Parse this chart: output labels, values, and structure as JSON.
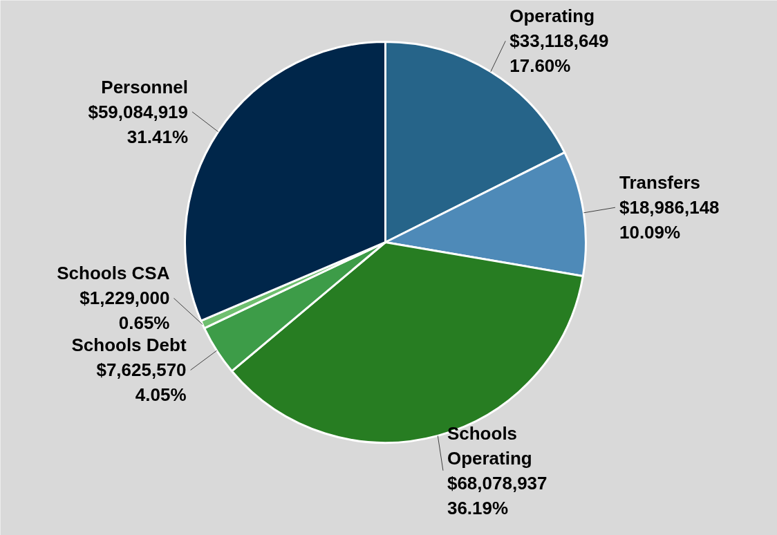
{
  "chart_data": {
    "type": "pie",
    "categories": [
      "Operating",
      "Transfers",
      "Schools\nOperating",
      "Schools Debt",
      "Schools CSA",
      "Personnel"
    ],
    "values": [
      33118649,
      18986148,
      68078937,
      7625570,
      1229000,
      59084919
    ],
    "colors": [
      "#266489",
      "#4e8ab8",
      "#277d22",
      "#3d9c48",
      "#6fbf6f",
      "#00264a"
    ],
    "value_labels": [
      "$33,118,649\n17.60%",
      "$18,986,148\n10.09%",
      "$68,078,937\n36.19%",
      "$7,625,570\n4.05%",
      "$1,229,000\n0.65%",
      "$59,084,919\n31.41%"
    ],
    "legend": false
  }
}
